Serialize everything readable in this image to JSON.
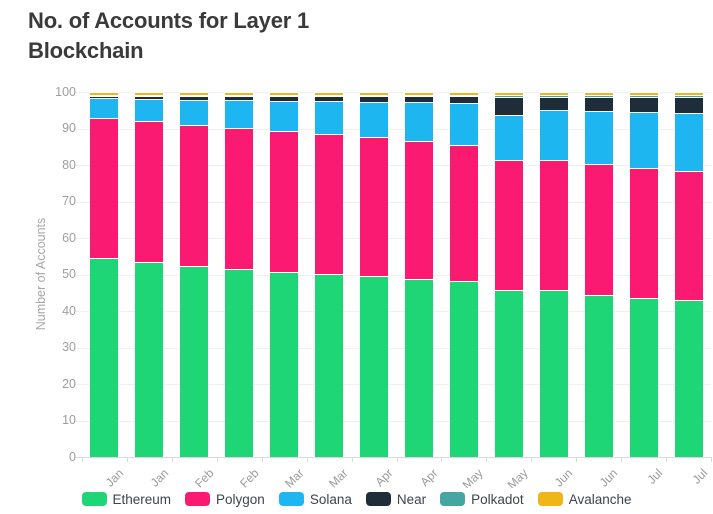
{
  "title": "No. of Accounts for Layer 1 Blockchain",
  "chart_data": {
    "type": "bar",
    "stacked": true,
    "title": "No. of Accounts for Layer 1 Blockchain",
    "xlabel": "",
    "ylabel": "Number of Accounts",
    "ylim": [
      0,
      100
    ],
    "ytick_step": 10,
    "yticks": [
      0,
      10,
      20,
      30,
      40,
      50,
      60,
      70,
      80,
      90,
      100
    ],
    "grid": true,
    "legend_position": "bottom",
    "categories": [
      "Jan",
      "Jan",
      "Feb",
      "Feb",
      "Mar",
      "Mar",
      "Apr",
      "Apr",
      "May",
      "May",
      "Jun",
      "Jun",
      "Jul",
      "Jul"
    ],
    "series": [
      {
        "name": "Ethereum",
        "color": "#1ed675",
        "values": [
          54.5,
          53.4,
          52.3,
          51.5,
          50.8,
          50.2,
          49.6,
          48.9,
          48.1,
          45.8,
          45.7,
          44.5,
          43.6,
          42.9
        ]
      },
      {
        "name": "Polygon",
        "color": "#fa1a72",
        "values": [
          38.3,
          38.6,
          38.6,
          38.7,
          38.5,
          38.2,
          38.0,
          37.8,
          37.5,
          35.7,
          35.8,
          35.9,
          35.5,
          35.5
        ]
      },
      {
        "name": "Solana",
        "color": "#1eb6f1",
        "values": [
          5.5,
          6.0,
          7.0,
          7.5,
          8.3,
          9.2,
          9.8,
          10.5,
          11.3,
          12.2,
          13.5,
          14.3,
          15.4,
          15.8
        ]
      },
      {
        "name": "Near",
        "color": "#1f2c39",
        "values": [
          0.5,
          0.8,
          0.9,
          1.1,
          1.2,
          1.2,
          1.4,
          1.6,
          1.9,
          5.0,
          3.7,
          4.0,
          4.2,
          4.5
        ]
      },
      {
        "name": "Polkadot",
        "color": "#44a5a3",
        "values": [
          0.5,
          0.5,
          0.5,
          0.5,
          0.5,
          0.5,
          0.5,
          0.5,
          0.5,
          0.6,
          0.6,
          0.6,
          0.6,
          0.6
        ]
      },
      {
        "name": "Avalanche",
        "color": "#eeb717",
        "values": [
          0.7,
          0.7,
          0.7,
          0.7,
          0.7,
          0.7,
          0.7,
          0.7,
          0.7,
          0.7,
          0.7,
          0.7,
          0.7,
          0.7
        ]
      }
    ]
  }
}
